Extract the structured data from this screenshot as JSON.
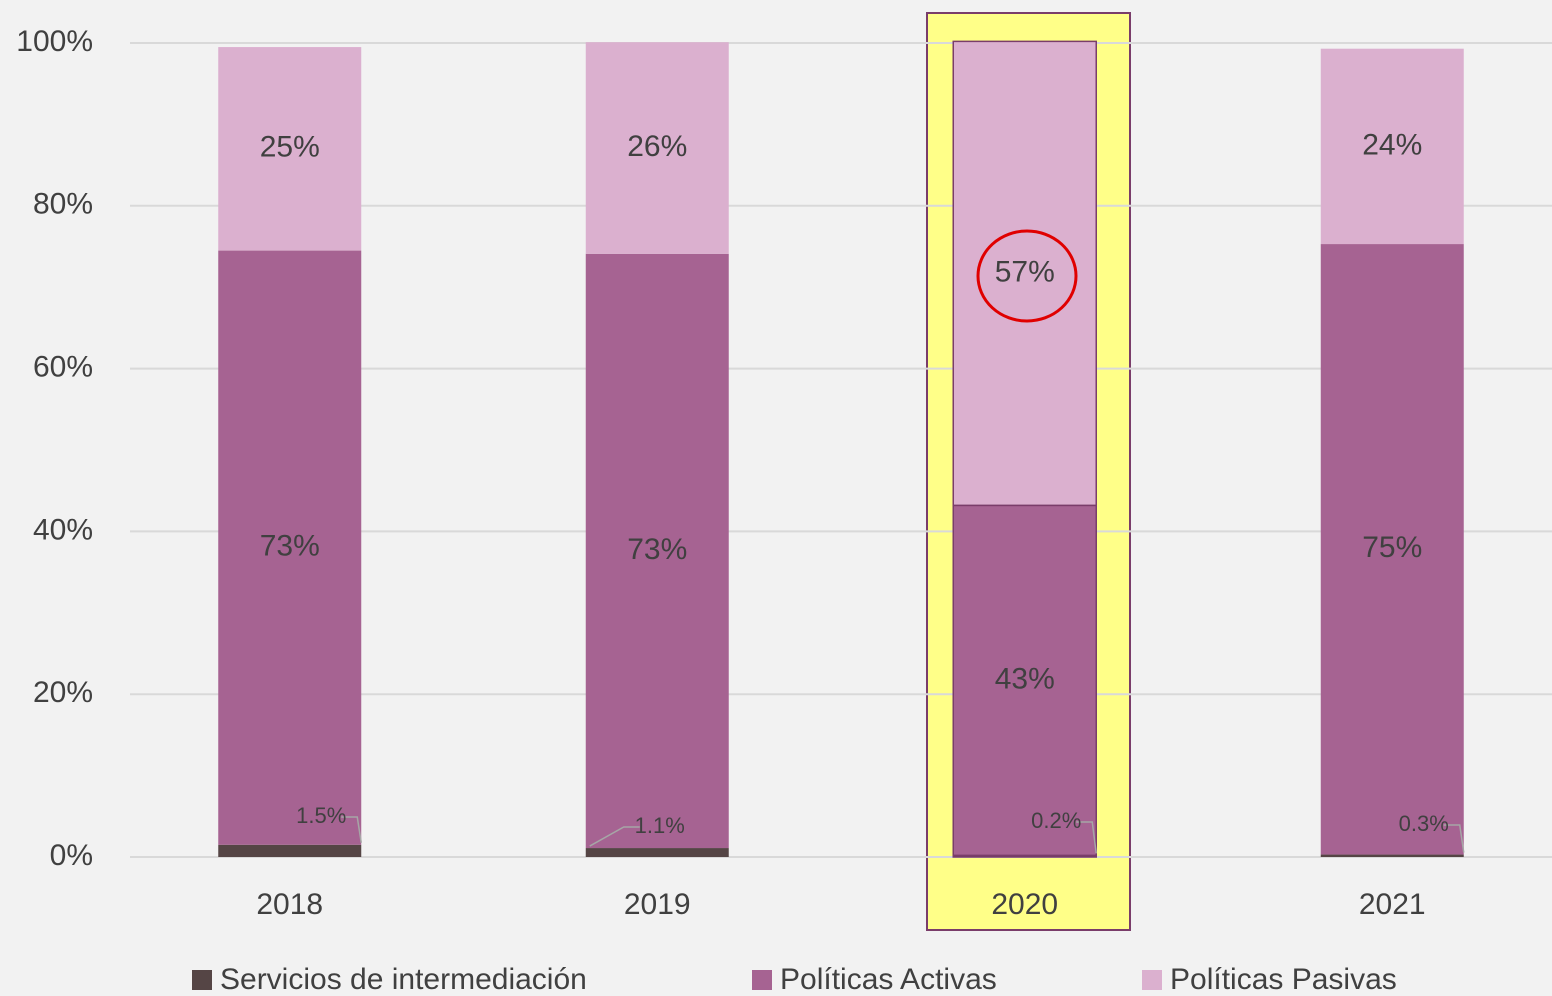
{
  "chart_data": {
    "type": "stacked-bar",
    "categories": [
      "2018",
      "2019",
      "2020",
      "2021"
    ],
    "series": [
      {
        "name": "Servicios de intermediación",
        "color": "#554545",
        "values": [
          1.5,
          1.1,
          0.2,
          0.3
        ],
        "value_labels": [
          "1.5%",
          "1.1%",
          "0.2%",
          "0.3%"
        ]
      },
      {
        "name": "Políticas Activas",
        "color": "#a66392",
        "values": [
          73,
          73,
          43,
          75
        ],
        "value_labels": [
          "73%",
          "73%",
          "43%",
          "75%"
        ]
      },
      {
        "name": "Políticas Pasivas",
        "color": "#dbb0cf",
        "values": [
          25,
          26,
          57,
          24
        ],
        "value_labels": [
          "25%",
          "26%",
          "57%",
          "24%"
        ]
      }
    ],
    "ylim": [
      0,
      100
    ],
    "yticks": [
      {
        "value": 0,
        "label": "0%"
      },
      {
        "value": 20,
        "label": "20%"
      },
      {
        "value": 40,
        "label": "40%"
      },
      {
        "value": 60,
        "label": "60%"
      },
      {
        "value": 80,
        "label": "80%"
      },
      {
        "value": 100,
        "label": "100%"
      }
    ],
    "grid": true,
    "legend": "bottom"
  }
}
